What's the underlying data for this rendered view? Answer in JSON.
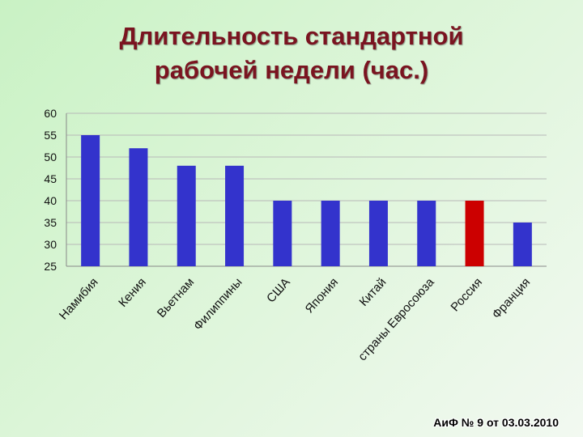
{
  "title": {
    "line1": "Длительность стандартной",
    "line2": "рабочей недели (час.)"
  },
  "source": "АиФ № 9 от 03.03.2010",
  "colors": {
    "bar": "#3333cc",
    "highlight": "#cc0000",
    "title": "#7a1420"
  },
  "chart_data": {
    "type": "bar",
    "title": "Длительность стандартной рабочей недели (час.)",
    "categories": [
      "Намибия",
      "Кения",
      "Вьетнам",
      "Филиппины",
      "США",
      "Япония",
      "Китай",
      "страны Евросоюза",
      "Россия",
      "Франция"
    ],
    "values": [
      55,
      52,
      48,
      48,
      40,
      40,
      40,
      40,
      40,
      35
    ],
    "highlight_index": 8,
    "ylim": [
      25,
      60
    ],
    "yticks": [
      25,
      30,
      35,
      40,
      45,
      50,
      55,
      60
    ],
    "grid": true,
    "legend": "none"
  }
}
